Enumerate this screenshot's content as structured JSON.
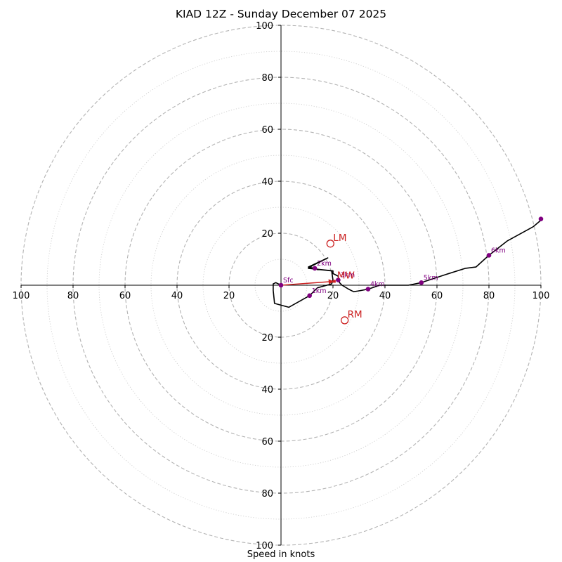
{
  "chart_data": {
    "type": "hodograph",
    "title": "KIAD 12Z - Sunday December 07 2025",
    "xlabel": "Speed in knots",
    "axis_max": 100,
    "ring_step_major": 20,
    "ring_step_minor": 10,
    "tick_labels": {
      "left": [
        "100",
        "80",
        "60",
        "40",
        "20"
      ],
      "right": [
        "20",
        "40",
        "60",
        "80",
        "100"
      ],
      "top": [
        "100",
        "80",
        "60",
        "40",
        "20"
      ],
      "bottom": [
        "20",
        "40",
        "60",
        "80",
        "100"
      ]
    },
    "tick_values": {
      "left": [
        -100,
        -80,
        -60,
        -40,
        -20
      ],
      "right": [
        20,
        40,
        60,
        80,
        100
      ],
      "top": [
        100,
        80,
        60,
        40,
        20
      ],
      "bottom": [
        -20,
        -40,
        -60,
        -80,
        -100
      ]
    },
    "trace": [
      [
        0,
        0
      ],
      [
        -2,
        1
      ],
      [
        -3,
        0.5
      ],
      [
        -3,
        -2
      ],
      [
        -2.5,
        -7
      ],
      [
        3,
        -8.5
      ],
      [
        11,
        -4
      ],
      [
        14,
        -1
      ],
      [
        19.5,
        0.5
      ],
      [
        20,
        2
      ],
      [
        19.5,
        5.5
      ],
      [
        15,
        6
      ],
      [
        14,
        6
      ],
      [
        13,
        6.5
      ],
      [
        10.5,
        7
      ],
      [
        18,
        10.5
      ],
      [
        15,
        9
      ],
      [
        12,
        7.5
      ],
      [
        10.5,
        6.5
      ],
      [
        20,
        5.5
      ],
      [
        20,
        4.5
      ],
      [
        22,
        3.5
      ],
      [
        22.5,
        1
      ],
      [
        23.5,
        0
      ],
      [
        26,
        -1.5
      ],
      [
        28,
        -2.5
      ],
      [
        33.5,
        -1.5
      ],
      [
        38,
        0
      ],
      [
        40,
        0
      ],
      [
        49,
        0
      ],
      [
        54,
        1
      ],
      [
        63,
        4
      ],
      [
        71,
        6.5
      ],
      [
        75,
        7
      ],
      [
        80,
        11.5
      ],
      [
        87,
        17
      ],
      [
        97,
        22.5
      ],
      [
        100,
        25
      ]
    ],
    "height_markers": [
      {
        "label": "Sfc",
        "u": 0,
        "v": 0
      },
      {
        "label": "1km",
        "u": 11,
        "v": -4
      },
      {
        "label": "2km",
        "u": 13,
        "v": 6.5
      },
      {
        "label": "3km",
        "u": 22,
        "v": 2
      },
      {
        "label": "4km",
        "u": 33.5,
        "v": -1.5
      },
      {
        "label": "5km",
        "u": 54,
        "v": 1
      },
      {
        "label": "6km",
        "u": 80,
        "v": 11.5
      },
      {
        "label": "",
        "u": 100,
        "v": 25.5
      }
    ],
    "storm_motion": [
      {
        "label": "LM",
        "u": 19,
        "v": 16
      },
      {
        "label": "MW",
        "u": 20.5,
        "v": 1.5
      },
      {
        "label": "RM",
        "u": 24.5,
        "v": -13.5
      }
    ],
    "shear_vector": {
      "from": [
        0,
        0
      ],
      "to": [
        20.5,
        1.5
      ]
    },
    "colors": {
      "trace": "#000000",
      "marker": "#800080",
      "storm": "#cc2222",
      "ring": "#b3b3b3",
      "axis": "#000000"
    }
  }
}
